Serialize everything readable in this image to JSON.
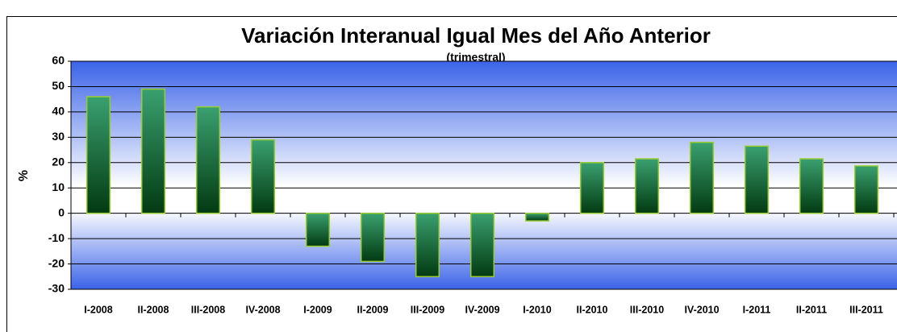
{
  "chart_data": {
    "type": "bar",
    "title": "Variación Interanual Igual Mes del Año Anterior",
    "subtitle": "(trimestral)",
    "y_label": "%",
    "categories": [
      "I-2008",
      "II-2008",
      "III-2008",
      "IV-2008",
      "I-2009",
      "II-2009",
      "III-2009",
      "IV-2009",
      "I-2010",
      "II-2010",
      "III-2010",
      "IV-2010",
      "I-2011",
      "II-2011",
      "III-2011"
    ],
    "values": [
      46,
      49,
      42,
      29,
      -13,
      -19,
      -25,
      -25,
      -3,
      20,
      21.5,
      28,
      26.5,
      21.5,
      18.7
    ],
    "color": "#2e8b57",
    "ylim": [
      -30,
      60
    ],
    "yticks": [
      -30,
      -20,
      -10,
      0,
      10,
      20,
      30,
      40,
      50,
      60
    ],
    "grid": true
  }
}
